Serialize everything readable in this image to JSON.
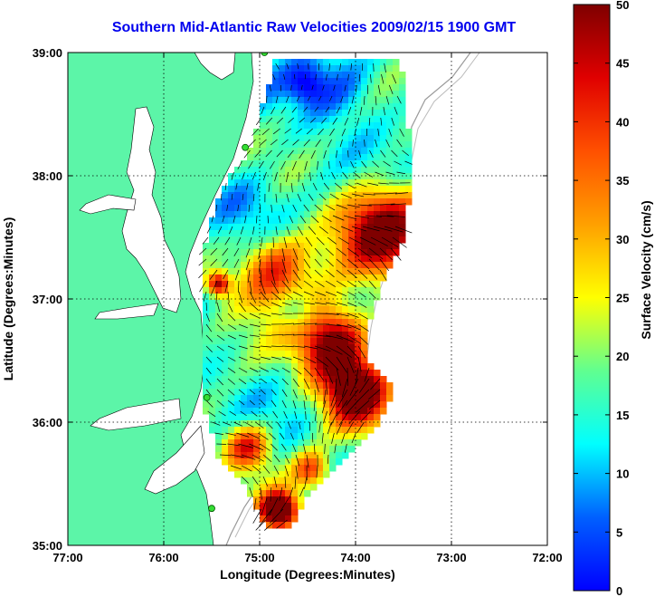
{
  "title": "Southern Mid-Atlantic Raw Velocities 2009/02/15 1900 GMT",
  "x_axis": {
    "label": "Longitude (Degrees:Minutes)",
    "range": [
      -77,
      -72
    ],
    "ticks": [
      {
        "value": -77,
        "label": "77:00"
      },
      {
        "value": -76,
        "label": "76:00"
      },
      {
        "value": -75,
        "label": "75:00"
      },
      {
        "value": -74,
        "label": "74:00"
      },
      {
        "value": -73,
        "label": "73:00"
      },
      {
        "value": -72,
        "label": "72:00"
      }
    ]
  },
  "y_axis": {
    "label": "Latitude (Degrees:Minutes)",
    "range": [
      35,
      39
    ],
    "ticks": [
      {
        "value": 39,
        "label": "39:00"
      },
      {
        "value": 38,
        "label": "38:00"
      },
      {
        "value": 37,
        "label": "37:00"
      },
      {
        "value": 36,
        "label": "36:00"
      },
      {
        "value": 35,
        "label": "35:00"
      }
    ]
  },
  "colorbar": {
    "label": "Surface Velocity (cm/s)",
    "range": [
      0,
      50
    ],
    "ticks": [
      {
        "value": 50,
        "label": "50"
      },
      {
        "value": 45,
        "label": "45"
      },
      {
        "value": 40,
        "label": "40"
      },
      {
        "value": 35,
        "label": "35"
      },
      {
        "value": 30,
        "label": "30"
      },
      {
        "value": 25,
        "label": "25"
      },
      {
        "value": 20,
        "label": "20"
      },
      {
        "value": 15,
        "label": "15"
      },
      {
        "value": 10,
        "label": "10"
      },
      {
        "value": 5,
        "label": "5"
      },
      {
        "value": 0,
        "label": "0"
      }
    ]
  },
  "colors": {
    "land": "#5cf5a8",
    "title": "#0000ee"
  },
  "stations": [
    {
      "lon": -74.95,
      "lat": 39.0
    },
    {
      "lon": -75.15,
      "lat": 38.23
    },
    {
      "lon": -75.55,
      "lat": 36.2
    },
    {
      "lon": -75.5,
      "lat": 35.3
    }
  ]
}
